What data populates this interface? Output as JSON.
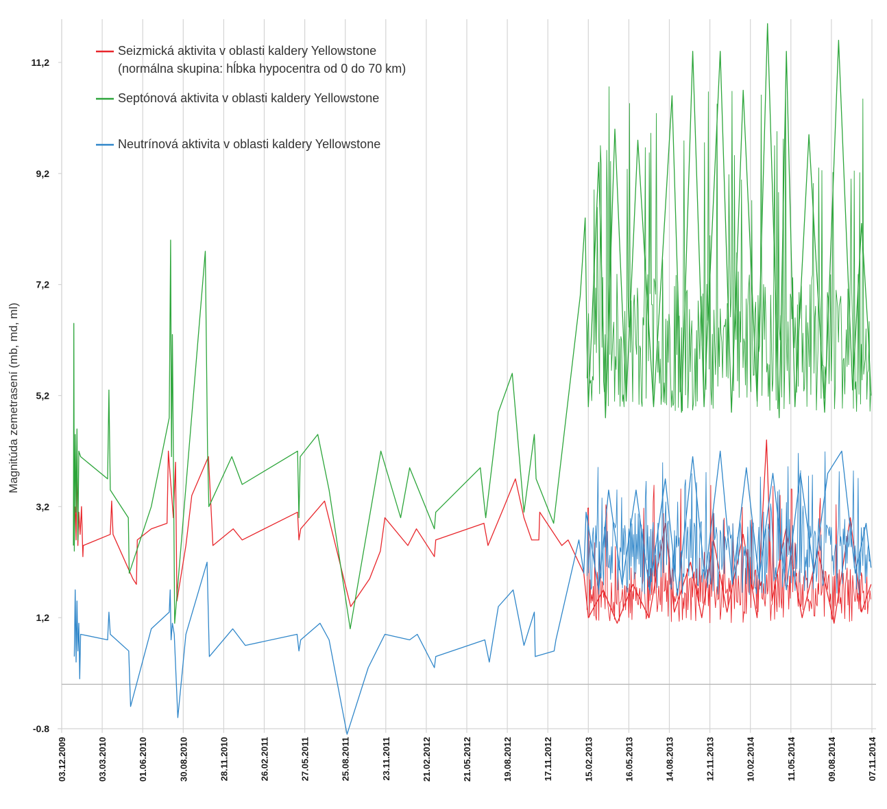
{
  "chart_data": {
    "type": "line",
    "title": "",
    "ylabel": "Magnitúda zemetrasení (mb, md, ml)",
    "xlabel": "",
    "ylim": [
      -0.8,
      12.0
    ],
    "yticks": [
      "-0.8",
      "1,2",
      "3,2",
      "5,2",
      "7,2",
      "9,2",
      "11,2"
    ],
    "ytick_values": [
      -0.8,
      1.2,
      3.2,
      5.2,
      7.2,
      9.2,
      11.2
    ],
    "x_tick_labels": [
      "03.12.2009",
      "03.03.2010",
      "01.06.2010",
      "30.08.2010",
      "28.11.2010",
      "26.02.2011",
      "27.05.2011",
      "25.08.2011",
      "23.11.2011",
      "21.02.2012",
      "21.05.2012",
      "19.08.2012",
      "17.11.2012",
      "15.02.2013",
      "16.05.2013",
      "14.08.2013",
      "12.11.2013",
      "10.02.2014",
      "11.05.2014",
      "09.08.2014",
      "07.11.2014"
    ],
    "x_unit": "date (dd.mm.yyyy)",
    "grid": true,
    "legend_position": "top-left",
    "legend": [
      {
        "name": "Seizmická aktivita v oblasti kaldery Yellowstone",
        "note": "(normálna skupina: hĺbka hypocentra od 0 do 70 km)",
        "color": "#e8262b"
      },
      {
        "name": "Septónová aktivita v oblasti kaldery Yellowstone",
        "note": "",
        "color": "#2ca53a"
      },
      {
        "name": "Neutrínová aktivita v oblasti kaldery Yellowstone",
        "note": "",
        "color": "#2f86c9"
      }
    ],
    "series": [
      {
        "name": "Seizmická aktivita v oblasti kaldery Yellowstone",
        "color": "#e8262b",
        "points": [
          [
            "2010-01-02",
            3.2
          ],
          [
            "2010-01-04",
            2.6
          ],
          [
            "2010-01-06",
            4.3
          ],
          [
            "2010-01-08",
            2.5
          ],
          [
            "2010-01-10",
            3.1
          ],
          [
            "2010-01-13",
            2.7
          ],
          [
            "2010-01-16",
            3.2
          ],
          [
            "2010-01-19",
            2.3
          ],
          [
            "2010-01-20",
            2.5
          ],
          [
            "2010-03-21",
            2.7
          ],
          [
            "2010-03-24",
            3.3
          ],
          [
            "2010-03-27",
            2.7
          ],
          [
            "2010-05-10",
            1.9
          ],
          [
            "2010-05-18",
            1.8
          ],
          [
            "2010-05-20",
            2.6
          ],
          [
            "2010-06-20",
            2.8
          ],
          [
            "2010-07-25",
            2.9
          ],
          [
            "2010-07-28",
            4.2
          ],
          [
            "2010-08-08",
            3.0
          ],
          [
            "2010-08-13",
            4.0
          ],
          [
            "2010-08-16",
            1.5
          ],
          [
            "2010-09-05",
            2.5
          ],
          [
            "2010-09-18",
            3.4
          ],
          [
            "2010-10-25",
            4.1
          ],
          [
            "2010-11-04",
            2.5
          ],
          [
            "2010-12-19",
            2.8
          ],
          [
            "2011-01-08",
            2.6
          ],
          [
            "2011-05-11",
            3.1
          ],
          [
            "2011-05-14",
            2.6
          ],
          [
            "2011-05-18",
            2.8
          ],
          [
            "2011-07-10",
            3.3
          ],
          [
            "2011-09-06",
            1.4
          ],
          [
            "2011-10-18",
            1.9
          ],
          [
            "2011-11-11",
            2.4
          ],
          [
            "2011-11-21",
            3.0
          ],
          [
            "2012-01-11",
            2.5
          ],
          [
            "2012-01-30",
            2.8
          ],
          [
            "2012-03-10",
            2.3
          ],
          [
            "2012-03-13",
            2.6
          ],
          [
            "2012-06-28",
            2.9
          ],
          [
            "2012-07-07",
            2.5
          ],
          [
            "2012-08-12",
            3.2
          ],
          [
            "2012-09-06",
            3.7
          ],
          [
            "2012-09-25",
            3.0
          ],
          [
            "2012-10-12",
            2.6
          ],
          [
            "2012-10-28",
            2.6
          ],
          [
            "2012-10-30",
            3.1
          ],
          [
            "2012-12-18",
            2.5
          ],
          [
            "2013-01-01",
            2.6
          ],
          [
            "2013-02-05",
            2.0
          ],
          [
            "2013-02-15",
            1.2
          ],
          [
            "2013-03-20",
            1.7
          ],
          [
            "2013-04-20",
            1.1
          ],
          [
            "2013-05-25",
            1.8
          ],
          [
            "2013-06-30",
            1.2
          ],
          [
            "2013-08-05",
            2.9
          ],
          [
            "2013-08-25",
            1.3
          ],
          [
            "2013-09-30",
            2.2
          ],
          [
            "2013-10-25",
            1.2
          ],
          [
            "2013-11-20",
            2.6
          ],
          [
            "2013-12-20",
            1.3
          ],
          [
            "2014-01-25",
            2.7
          ],
          [
            "2014-02-25",
            1.2
          ],
          [
            "2014-03-18",
            4.4
          ],
          [
            "2014-03-30",
            1.5
          ],
          [
            "2014-04-30",
            2.8
          ],
          [
            "2014-06-05",
            1.2
          ],
          [
            "2014-07-10",
            2.4
          ],
          [
            "2014-08-15",
            1.1
          ],
          [
            "2014-09-20",
            3.0
          ],
          [
            "2014-10-15",
            1.3
          ],
          [
            "2014-11-05",
            1.8
          ]
        ]
      },
      {
        "name": "Septónová aktivita v oblasti kaldery Yellowstone",
        "color": "#2ca53a",
        "points": [
          [
            "2009-12-29",
            2.5
          ],
          [
            "2009-12-30",
            6.5
          ],
          [
            "2009-12-31",
            2.4
          ],
          [
            "2010-01-02",
            4.5
          ],
          [
            "2010-01-04",
            3.1
          ],
          [
            "2010-01-06",
            4.6
          ],
          [
            "2010-01-08",
            2.6
          ],
          [
            "2010-01-10",
            4.2
          ],
          [
            "2010-01-14",
            4.1
          ],
          [
            "2010-03-15",
            3.7
          ],
          [
            "2010-03-18",
            5.3
          ],
          [
            "2010-03-21",
            3.5
          ],
          [
            "2010-04-30",
            3.0
          ],
          [
            "2010-05-02",
            2.0
          ],
          [
            "2010-06-20",
            3.2
          ],
          [
            "2010-07-30",
            4.8
          ],
          [
            "2010-08-02",
            8.0
          ],
          [
            "2010-08-04",
            4.1
          ],
          [
            "2010-08-06",
            6.3
          ],
          [
            "2010-08-08",
            4.2
          ],
          [
            "2010-08-11",
            1.1
          ],
          [
            "2010-10-18",
            7.8
          ],
          [
            "2010-10-23",
            4.2
          ],
          [
            "2010-10-26",
            3.2
          ],
          [
            "2010-12-16",
            4.1
          ],
          [
            "2011-01-08",
            3.6
          ],
          [
            "2011-05-11",
            4.2
          ],
          [
            "2011-05-14",
            3.0
          ],
          [
            "2011-05-17",
            4.1
          ],
          [
            "2011-06-25",
            4.5
          ],
          [
            "2011-07-20",
            3.5
          ],
          [
            "2011-09-05",
            1.0
          ],
          [
            "2011-11-12",
            4.2
          ],
          [
            "2011-12-26",
            3.0
          ],
          [
            "2012-01-15",
            3.9
          ],
          [
            "2012-03-10",
            2.8
          ],
          [
            "2012-03-13",
            3.1
          ],
          [
            "2012-06-20",
            3.9
          ],
          [
            "2012-07-02",
            3.0
          ],
          [
            "2012-07-30",
            4.9
          ],
          [
            "2012-08-30",
            5.6
          ],
          [
            "2012-09-25",
            3.1
          ],
          [
            "2012-10-18",
            4.5
          ],
          [
            "2012-10-22",
            3.7
          ],
          [
            "2012-11-30",
            2.9
          ],
          [
            "2013-01-28",
            7.0
          ],
          [
            "2013-02-08",
            8.4
          ],
          [
            "2013-02-12",
            6.1
          ],
          [
            "2013-02-15",
            5.0
          ],
          [
            "2013-03-10",
            9.4
          ],
          [
            "2013-03-25",
            4.8
          ],
          [
            "2013-04-15",
            10.0
          ],
          [
            "2013-05-10",
            5.1
          ],
          [
            "2013-06-05",
            9.8
          ],
          [
            "2013-07-10",
            5.0
          ],
          [
            "2013-08-20",
            10.6
          ],
          [
            "2013-09-10",
            4.9
          ],
          [
            "2013-10-05",
            11.4
          ],
          [
            "2013-10-30",
            5.0
          ],
          [
            "2013-12-05",
            11.4
          ],
          [
            "2013-12-30",
            4.9
          ],
          [
            "2014-01-25",
            10.7
          ],
          [
            "2014-02-25",
            5.1
          ],
          [
            "2014-03-20",
            11.9
          ],
          [
            "2014-04-15",
            4.8
          ],
          [
            "2014-05-01",
            11.4
          ],
          [
            "2014-05-20",
            5.0
          ],
          [
            "2014-06-20",
            9.9
          ],
          [
            "2014-07-25",
            4.9
          ],
          [
            "2014-08-25",
            11.6
          ],
          [
            "2014-09-25",
            5.3
          ],
          [
            "2014-10-15",
            8.3
          ],
          [
            "2014-10-30",
            6.3
          ],
          [
            "2014-11-05",
            5.2
          ]
        ]
      },
      {
        "name": "Neutrínová aktivita v oblasti kaldery Yellowstone",
        "color": "#2f86c9",
        "points": [
          [
            "2009-12-31",
            0.5
          ],
          [
            "2010-01-02",
            1.7
          ],
          [
            "2010-01-04",
            0.4
          ],
          [
            "2010-01-06",
            1.5
          ],
          [
            "2010-01-08",
            0.6
          ],
          [
            "2010-01-10",
            1.1
          ],
          [
            "2010-01-12",
            0.1
          ],
          [
            "2010-01-14",
            0.9
          ],
          [
            "2010-03-15",
            0.8
          ],
          [
            "2010-03-18",
            1.3
          ],
          [
            "2010-03-21",
            0.9
          ],
          [
            "2010-05-01",
            0.6
          ],
          [
            "2010-05-05",
            -0.4
          ],
          [
            "2010-06-20",
            1.0
          ],
          [
            "2010-07-30",
            1.3
          ],
          [
            "2010-08-01",
            1.7
          ],
          [
            "2010-08-03",
            0.8
          ],
          [
            "2010-08-06",
            1.1
          ],
          [
            "2010-08-10",
            0.9
          ],
          [
            "2010-08-18",
            -0.6
          ],
          [
            "2010-09-05",
            0.9
          ],
          [
            "2010-10-22",
            2.2
          ],
          [
            "2010-10-27",
            0.5
          ],
          [
            "2010-12-18",
            1.0
          ],
          [
            "2011-01-15",
            0.7
          ],
          [
            "2011-05-10",
            0.9
          ],
          [
            "2011-05-14",
            0.6
          ],
          [
            "2011-05-18",
            0.8
          ],
          [
            "2011-06-30",
            1.1
          ],
          [
            "2011-07-20",
            0.8
          ],
          [
            "2011-08-29",
            -0.9
          ],
          [
            "2011-10-15",
            0.3
          ],
          [
            "2011-11-21",
            0.9
          ],
          [
            "2012-01-15",
            0.8
          ],
          [
            "2012-02-01",
            0.9
          ],
          [
            "2012-03-10",
            0.3
          ],
          [
            "2012-03-13",
            0.5
          ],
          [
            "2012-06-30",
            0.8
          ],
          [
            "2012-07-10",
            0.4
          ],
          [
            "2012-07-30",
            1.4
          ],
          [
            "2012-09-01",
            1.7
          ],
          [
            "2012-09-25",
            0.7
          ],
          [
            "2012-10-18",
            1.3
          ],
          [
            "2012-10-20",
            0.5
          ],
          [
            "2012-12-01",
            0.6
          ],
          [
            "2012-12-05",
            0.8
          ],
          [
            "2013-01-25",
            2.6
          ],
          [
            "2013-02-05",
            2.0
          ],
          [
            "2013-02-10",
            3.1
          ],
          [
            "2013-03-10",
            1.7
          ],
          [
            "2013-04-01",
            3.5
          ],
          [
            "2013-05-01",
            1.8
          ],
          [
            "2013-06-01",
            3.5
          ],
          [
            "2013-07-01",
            1.7
          ],
          [
            "2013-08-05",
            3.7
          ],
          [
            "2013-09-01",
            1.6
          ],
          [
            "2013-10-05",
            4.1
          ],
          [
            "2013-11-01",
            1.9
          ],
          [
            "2013-12-05",
            4.2
          ],
          [
            "2014-01-01",
            1.8
          ],
          [
            "2014-02-01",
            3.9
          ],
          [
            "2014-03-01",
            1.9
          ],
          [
            "2014-04-01",
            3.8
          ],
          [
            "2014-05-01",
            1.7
          ],
          [
            "2014-06-01",
            3.8
          ],
          [
            "2014-07-01",
            2.0
          ],
          [
            "2014-08-01",
            3.8
          ],
          [
            "2014-09-01",
            4.2
          ],
          [
            "2014-10-01",
            2.0
          ],
          [
            "2014-10-25",
            2.9
          ],
          [
            "2014-11-05",
            2.1
          ]
        ]
      }
    ]
  }
}
